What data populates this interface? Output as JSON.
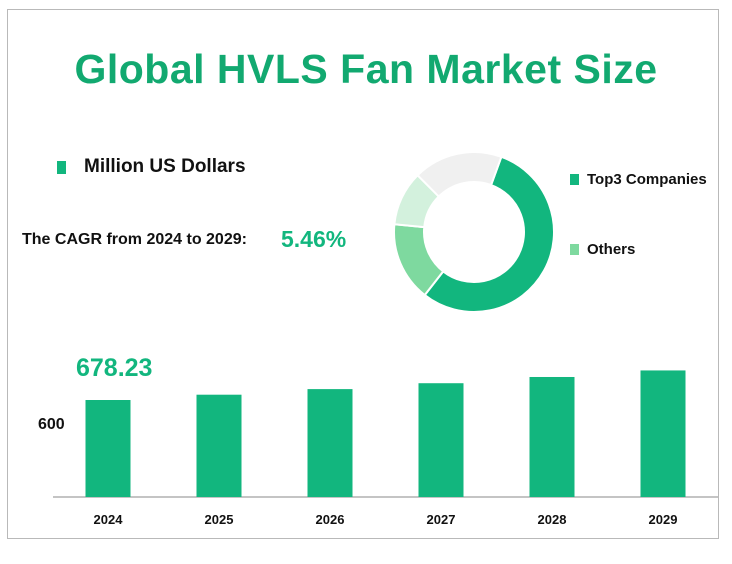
{
  "title": "Global HVLS Fan Market Size",
  "unit_label": "Million US Dollars",
  "cagr": {
    "label": "The CAGR from 2024 to 2029:",
    "value": "5.46%"
  },
  "colors": {
    "accent": "#12b67e",
    "title": "#12a970",
    "dark_green": "#12b67e",
    "light_green": "#7ed99f",
    "pale_green": "#d3f1dd",
    "gray": "#f0f0f0"
  },
  "chart_data": [
    {
      "type": "bar",
      "categories": [
        "2024",
        "2025",
        "2026",
        "2027",
        "2028",
        "2029"
      ],
      "values": [
        678.23,
        715.3,
        754.4,
        795.6,
        839.1,
        884.9
      ],
      "data_labels": [
        "678.23",
        "",
        "",
        "",
        "",
        ""
      ],
      "ytick_labels": [
        "600"
      ],
      "ylim": [
        0,
        900
      ]
    },
    {
      "type": "pie",
      "donut": true,
      "labels": [
        "Top3 Companies",
        "Others",
        "",
        ""
      ],
      "values": [
        55,
        16,
        11,
        18
      ],
      "colors": [
        "#12b67e",
        "#7ed99f",
        "#d3f1dd",
        "#f0f0f0"
      ],
      "legend": "right"
    }
  ]
}
